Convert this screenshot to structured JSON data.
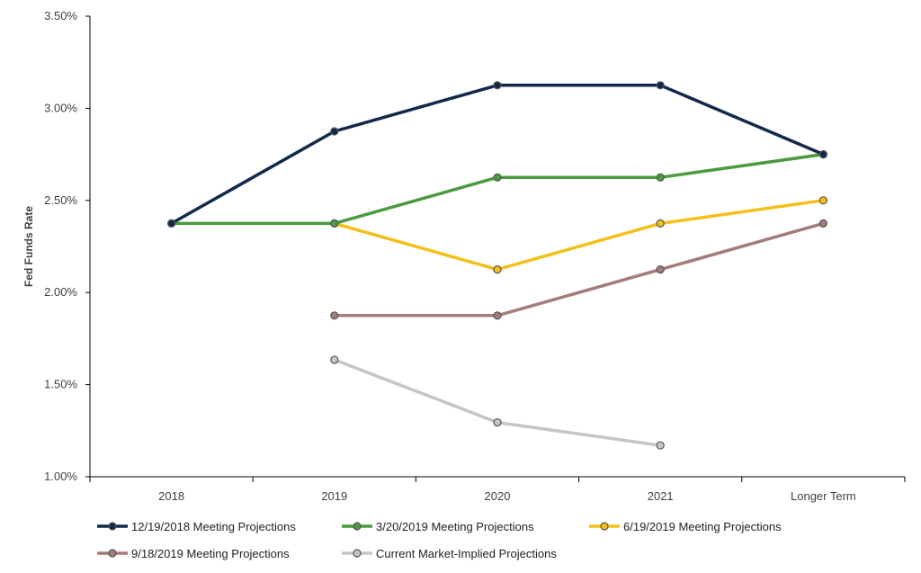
{
  "chart_data": {
    "type": "line",
    "title": "",
    "xlabel": "",
    "ylabel": "Fed Funds Rate",
    "categories": [
      "2018",
      "2019",
      "2020",
      "2021",
      "Longer Term"
    ],
    "yticks": [
      "1.00%",
      "1.50%",
      "2.00%",
      "2.50%",
      "3.00%",
      "3.50%"
    ],
    "ylim": [
      1.0,
      3.5
    ],
    "grid": false,
    "legend_position": "bottom",
    "series": [
      {
        "name": "12/19/2018 Meeting Projections",
        "color": "#13294b",
        "values": [
          2.375,
          2.875,
          3.125,
          3.125,
          2.75
        ]
      },
      {
        "name": "3/20/2019 Meeting Projections",
        "color": "#4a9a3f",
        "values": [
          2.375,
          2.375,
          2.625,
          2.625,
          2.75
        ]
      },
      {
        "name": "6/19/2019 Meeting Projections",
        "color": "#f5bf1a",
        "values": [
          null,
          2.375,
          2.125,
          2.375,
          2.5
        ]
      },
      {
        "name": "9/18/2019 Meeting Projections",
        "color": "#a27d7a",
        "values": [
          null,
          1.875,
          1.875,
          2.125,
          2.375
        ]
      },
      {
        "name": "Current Market-Implied Projections",
        "color": "#c5c5c5",
        "values": [
          null,
          1.635,
          1.295,
          1.17,
          null
        ]
      }
    ]
  }
}
